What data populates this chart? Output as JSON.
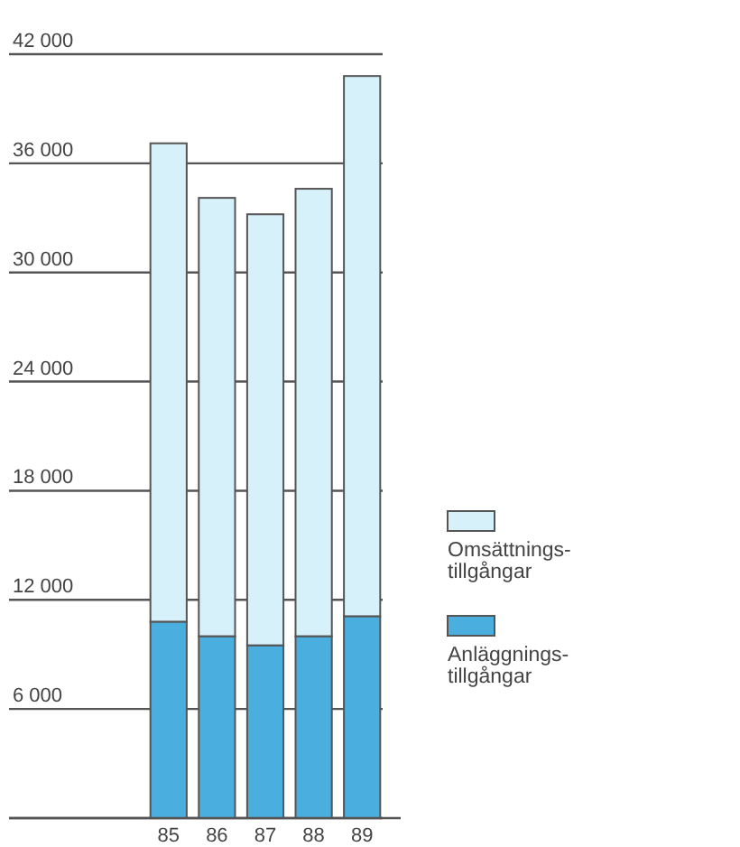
{
  "chart_data": {
    "type": "bar",
    "stacked": true,
    "categories": [
      "85",
      "86",
      "87",
      "88",
      "89"
    ],
    "series": [
      {
        "name": "Anläggnings-tillgångar",
        "color": "#4aaedf",
        "values": [
          10800,
          10000,
          9500,
          10000,
          11100
        ]
      },
      {
        "name": "Omsättnings-tillgångar",
        "color": "#d6f1f9",
        "values": [
          26300,
          24100,
          23700,
          24600,
          29700
        ]
      }
    ],
    "ylim": [
      0,
      42000
    ],
    "yticks": [
      {
        "value": 0,
        "label": null
      },
      {
        "value": 6000,
        "label": "6 000"
      },
      {
        "value": 12000,
        "label": "12 000"
      },
      {
        "value": 18000,
        "label": "18 000"
      },
      {
        "value": 24000,
        "label": "24 000"
      },
      {
        "value": 30000,
        "label": "30 000"
      },
      {
        "value": 36000,
        "label": "36 000"
      },
      {
        "value": 42000,
        "label": "42 000"
      }
    ],
    "grid": "y",
    "legend": "right"
  }
}
